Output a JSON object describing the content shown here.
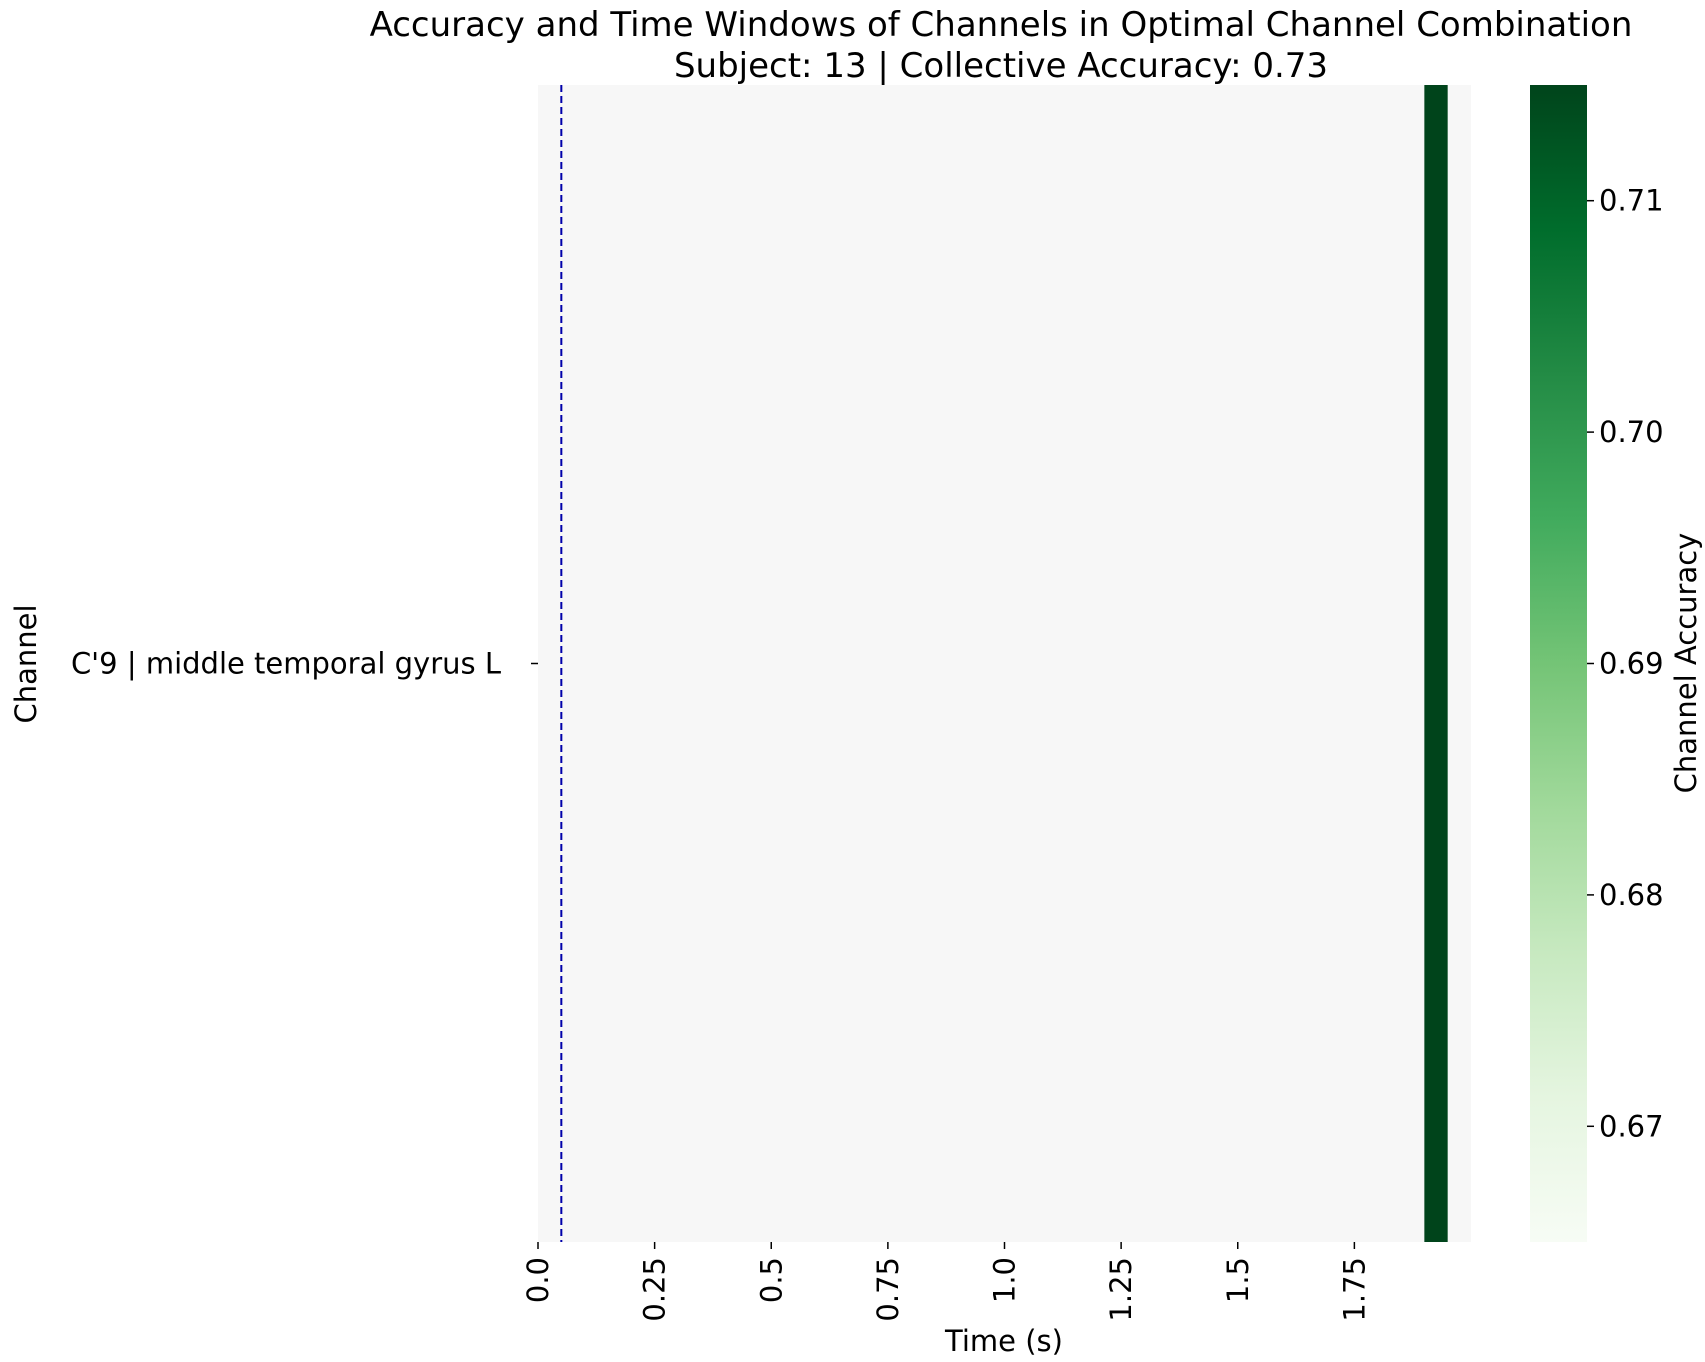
{
  "chart_data": {
    "type": "heatmap",
    "title": "Accuracy and Time Windows of Channels in Optimal Channel Combination",
    "subtitle": "Subject: 13 | Collective Accuracy: 0.73",
    "xlabel": "Time (s)",
    "ylabel": "Channel",
    "x_ticks": [
      "0.0",
      "0.25",
      "0.5",
      "0.75",
      "1.0",
      "1.25",
      "1.5",
      "1.75"
    ],
    "x_tick_values": [
      0.0,
      0.25,
      0.5,
      0.75,
      1.0,
      1.25,
      1.5,
      1.75
    ],
    "xlim": [
      0.0,
      2.0
    ],
    "rows": [
      "C'9 | middle temporal gyrus L"
    ],
    "active_windows": [
      {
        "channel": "C'9 | middle temporal gyrus L",
        "start": 1.9,
        "end": 1.95,
        "accuracy": 0.715
      }
    ],
    "reference_line": {
      "x": 0.05,
      "style": "dashed",
      "color": "#0000aa"
    },
    "colorbar": {
      "label": "Channel Accuracy",
      "range": [
        0.665,
        0.715
      ],
      "ticks": [
        "0.67",
        "0.68",
        "0.69",
        "0.70",
        "0.71"
      ],
      "tick_values": [
        0.67,
        0.68,
        0.69,
        0.7,
        0.71
      ],
      "colormap": "Greens"
    },
    "background_color": "#f7f7f7",
    "grid": false
  }
}
